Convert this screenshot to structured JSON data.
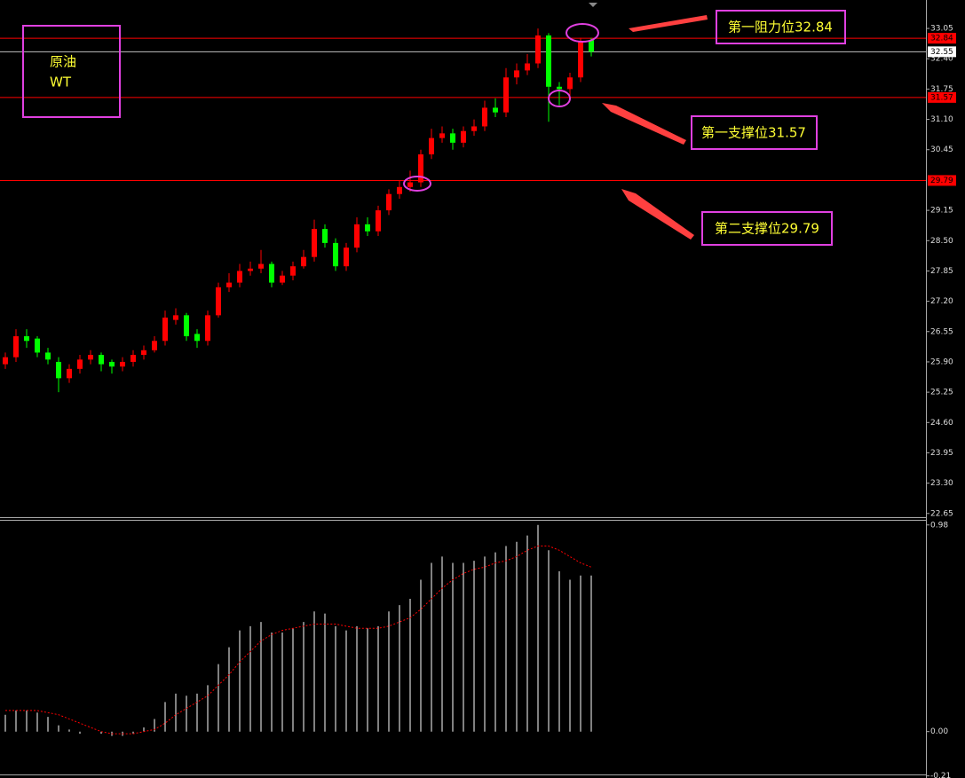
{
  "chart_data": {
    "type": "candlestick",
    "up_color": "#ff0000",
    "down_color": "#00ff00",
    "open": [
      25.85,
      26.0,
      26.45,
      26.4,
      26.1,
      25.9,
      25.55,
      25.75,
      25.95,
      26.05,
      25.9,
      25.8,
      25.9,
      26.05,
      26.15,
      26.35,
      26.8,
      26.9,
      26.5,
      26.35,
      26.9,
      27.5,
      27.6,
      27.85,
      27.9,
      28.0,
      27.6,
      27.75,
      27.95,
      28.15,
      28.75,
      28.45,
      27.95,
      28.35,
      28.85,
      28.7,
      29.15,
      29.5,
      29.65,
      29.75,
      30.35,
      30.7,
      30.8,
      30.6,
      30.85,
      30.95,
      31.35,
      31.25,
      32.0,
      32.15,
      32.3,
      32.9,
      31.8,
      31.75,
      32.0,
      32.8
    ],
    "high": [
      26.1,
      26.6,
      26.6,
      26.45,
      26.2,
      26.0,
      25.85,
      26.05,
      26.15,
      26.1,
      25.95,
      26.0,
      26.15,
      26.25,
      26.45,
      27.0,
      27.05,
      26.95,
      26.6,
      27.0,
      27.6,
      27.8,
      28.0,
      28.05,
      28.3,
      28.05,
      27.85,
      28.05,
      28.3,
      28.95,
      28.85,
      28.55,
      28.45,
      29.0,
      29.0,
      29.25,
      29.6,
      29.8,
      30.0,
      30.45,
      30.9,
      30.95,
      30.9,
      30.95,
      31.1,
      31.5,
      31.55,
      32.2,
      32.3,
      32.5,
      33.05,
      32.95,
      31.9,
      32.1,
      32.85,
      32.85
    ],
    "low": [
      25.75,
      25.9,
      26.2,
      26.0,
      25.85,
      25.25,
      25.45,
      25.65,
      25.85,
      25.7,
      25.65,
      25.7,
      25.8,
      25.95,
      26.1,
      26.25,
      26.7,
      26.35,
      26.2,
      26.25,
      26.85,
      27.4,
      27.5,
      27.75,
      27.8,
      27.5,
      27.55,
      27.65,
      27.9,
      28.05,
      28.35,
      27.85,
      27.85,
      28.25,
      28.6,
      28.6,
      29.05,
      29.4,
      29.55,
      29.65,
      30.25,
      30.6,
      30.45,
      30.5,
      30.75,
      30.85,
      31.15,
      31.15,
      31.85,
      32.05,
      32.2,
      31.05,
      31.4,
      31.6,
      31.9,
      32.45
    ],
    "close": [
      26.0,
      26.45,
      26.35,
      26.1,
      25.95,
      25.55,
      25.75,
      25.95,
      26.05,
      25.85,
      25.8,
      25.9,
      26.05,
      26.15,
      26.35,
      26.85,
      26.9,
      26.45,
      26.35,
      26.9,
      27.5,
      27.6,
      27.85,
      27.9,
      28.0,
      27.6,
      27.75,
      27.95,
      28.15,
      28.75,
      28.45,
      27.95,
      28.35,
      28.85,
      28.7,
      29.15,
      29.5,
      29.65,
      29.75,
      30.35,
      30.7,
      30.8,
      30.6,
      30.85,
      30.95,
      31.35,
      31.25,
      32.0,
      32.15,
      32.3,
      32.9,
      31.8,
      31.75,
      32.0,
      32.75,
      32.55
    ],
    "ylim": [
      22.57,
      33.66
    ],
    "yticks": [
      33.05,
      {
        "value": 32.4,
        "label": "32.40"
      },
      31.75,
      {
        "value": 31.1,
        "label": "31.10"
      },
      30.45,
      29.15,
      {
        "value": 28.5,
        "label": "28.50"
      },
      27.85,
      {
        "value": 27.2,
        "label": "27.20"
      },
      26.55,
      {
        "value": 25.9,
        "label": "25.90"
      },
      25.25,
      {
        "value": 24.6,
        "label": "24.60"
      },
      23.95,
      {
        "value": 23.3,
        "label": "23.30"
      },
      22.65
    ],
    "levels": [
      {
        "value": 32.84,
        "color": "#ff0000"
      },
      {
        "value": 32.55,
        "color": "#c0c0c0"
      },
      {
        "value": 31.57,
        "color": "#ff0000"
      },
      {
        "value": 29.79,
        "color": "#ff0000"
      }
    ],
    "indicator": {
      "histogram": [
        0.08,
        0.1,
        0.1,
        0.09,
        0.07,
        0.03,
        0.01,
        -0.01,
        0.0,
        -0.01,
        -0.02,
        -0.02,
        -0.01,
        0.02,
        0.06,
        0.14,
        0.18,
        0.17,
        0.18,
        0.22,
        0.32,
        0.4,
        0.48,
        0.5,
        0.52,
        0.47,
        0.47,
        0.49,
        0.52,
        0.57,
        0.56,
        0.5,
        0.48,
        0.5,
        0.49,
        0.5,
        0.57,
        0.6,
        0.63,
        0.72,
        0.8,
        0.83,
        0.8,
        0.8,
        0.81,
        0.83,
        0.85,
        0.88,
        0.9,
        0.93,
        0.98,
        0.86,
        0.76,
        0.72,
        0.74,
        0.74
      ],
      "signal": [
        0.1,
        0.1,
        0.1,
        0.1,
        0.09,
        0.08,
        0.06,
        0.04,
        0.02,
        0.0,
        -0.01,
        -0.01,
        -0.01,
        0.0,
        0.01,
        0.04,
        0.08,
        0.11,
        0.14,
        0.17,
        0.22,
        0.27,
        0.33,
        0.38,
        0.43,
        0.46,
        0.48,
        0.49,
        0.5,
        0.51,
        0.51,
        0.51,
        0.5,
        0.49,
        0.49,
        0.49,
        0.5,
        0.52,
        0.54,
        0.58,
        0.63,
        0.68,
        0.72,
        0.75,
        0.77,
        0.78,
        0.8,
        0.81,
        0.83,
        0.86,
        0.88,
        0.88,
        0.86,
        0.83,
        0.8,
        0.78
      ],
      "histogram_color": "#ffffff",
      "signal_color": "#ff0000",
      "ylim": [
        -0.22,
        1.0
      ],
      "yticks": [
        0.98,
        {
          "value": 0,
          "label": "0.00"
        },
        -0.21
      ]
    },
    "annotations": {
      "symbol": [
        "原油",
        "WT"
      ],
      "resistance_1": "第一阻力位32.84",
      "support_1": "第一支撑位31.57",
      "support_2": "第二支撑位29.79"
    }
  }
}
